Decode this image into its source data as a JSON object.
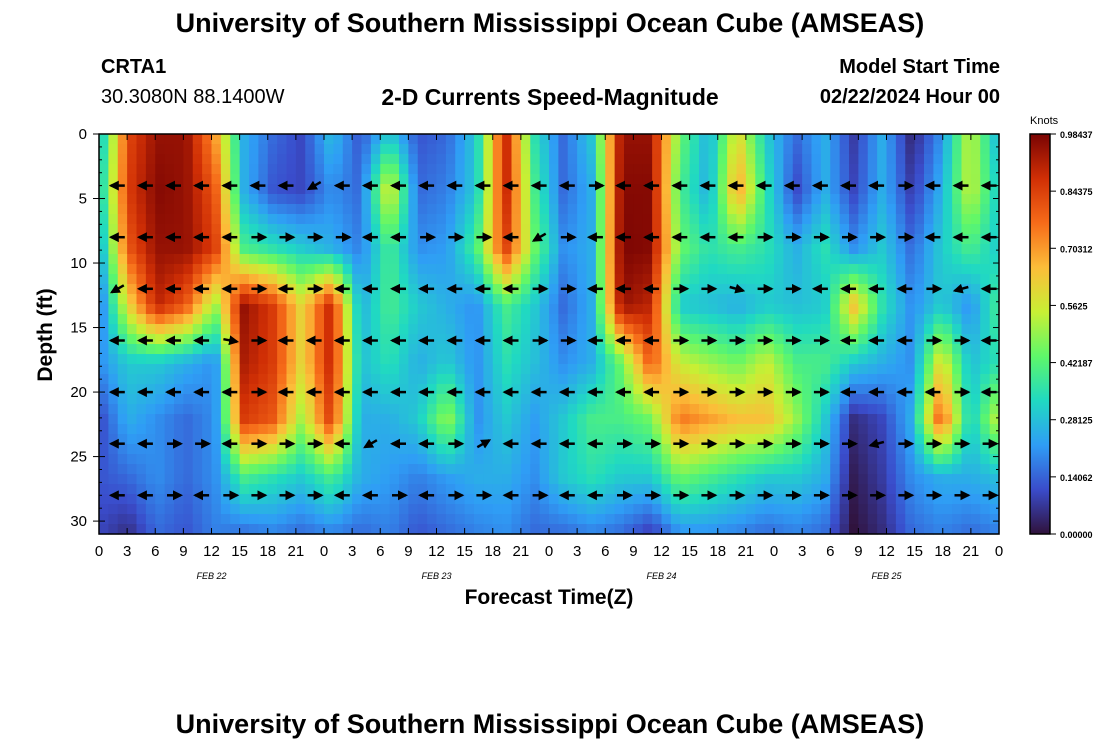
{
  "header": {
    "title": "University of Southern Mississippi Ocean Cube (AMSEAS)",
    "station": "CRTA1",
    "location": "30.3080N  88.1400W",
    "subtitle": "2-D Currents Speed-Magnitude",
    "model_start_label": "Model Start Time",
    "model_start_value": "02/22/2024 Hour 00"
  },
  "footer": {
    "title": "University of Southern Mississippi Ocean Cube (AMSEAS)"
  },
  "chart_data": {
    "type": "heatmap",
    "title": "2-D Currents Speed-Magnitude",
    "xlabel": "Forecast Time(Z)",
    "ylabel": "Depth (ft)",
    "xlim": [
      0,
      96
    ],
    "ylim": [
      31,
      0
    ],
    "x_ticks": [
      "0",
      "3",
      "6",
      "9",
      "12",
      "15",
      "18",
      "21",
      "0",
      "3",
      "6",
      "9",
      "12",
      "15",
      "18",
      "21",
      "0",
      "3",
      "6",
      "9",
      "12",
      "15",
      "18",
      "21",
      "0",
      "3",
      "6",
      "9",
      "12",
      "15",
      "18",
      "21",
      "0"
    ],
    "y_ticks": [
      "0",
      "5",
      "10",
      "15",
      "20",
      "25",
      "30"
    ],
    "date_labels": [
      {
        "text": "FEB 22",
        "hour": 12
      },
      {
        "text": "FEB 23",
        "hour": 36
      },
      {
        "text": "FEB 24",
        "hour": 60
      },
      {
        "text": "FEB 25",
        "hour": 84
      }
    ],
    "colorbar": {
      "unit": "Knots",
      "min": 0.0,
      "max": 0.98437,
      "ticks": [
        "0.98437",
        "0.84375",
        "0.70312",
        "0.5625",
        "0.42187",
        "0.28125",
        "0.14062",
        "0.00000"
      ],
      "colors": [
        "#30123b",
        "#3a4ccb",
        "#2f9df5",
        "#20d9c2",
        "#5ef76a",
        "#c8ef34",
        "#fcbd39",
        "#f66b19",
        "#d02f05",
        "#7a0403"
      ]
    },
    "arrow_depths_ft": [
      4,
      8,
      12,
      16,
      20,
      24,
      28
    ],
    "arrow_times_hr": [
      2,
      5,
      8,
      11,
      14,
      17,
      20,
      23,
      26,
      29,
      32,
      35,
      38,
      41,
      44,
      47,
      50,
      53,
      56,
      59,
      62,
      65,
      68,
      71,
      74,
      77,
      80,
      83,
      86,
      89,
      92,
      95
    ],
    "speed_knots": [
      [
        0.25,
        0.83,
        0.95,
        0.95,
        0.7,
        0.25,
        0.15,
        0.1,
        0.28,
        0.12,
        0.3,
        0.12,
        0.15,
        0.3,
        0.9,
        0.35,
        0.15,
        0.3,
        0.95,
        0.95,
        0.45,
        0.25,
        0.6,
        0.3,
        0.15,
        0.25,
        0.08,
        0.25,
        0.04,
        0.2,
        0.55,
        0.25
      ],
      [
        0.28,
        0.85,
        0.97,
        0.95,
        0.8,
        0.25,
        0.12,
        0.1,
        0.2,
        0.15,
        0.6,
        0.15,
        0.18,
        0.3,
        0.9,
        0.4,
        0.15,
        0.25,
        0.97,
        0.97,
        0.4,
        0.25,
        0.7,
        0.35,
        0.1,
        0.25,
        0.1,
        0.25,
        0.08,
        0.25,
        0.55,
        0.3
      ],
      [
        0.22,
        0.8,
        0.95,
        0.95,
        0.85,
        0.4,
        0.35,
        0.3,
        0.25,
        0.18,
        0.4,
        0.2,
        0.22,
        0.4,
        0.85,
        0.45,
        0.2,
        0.25,
        0.98,
        0.97,
        0.45,
        0.35,
        0.4,
        0.35,
        0.25,
        0.35,
        0.2,
        0.3,
        0.15,
        0.3,
        0.4,
        0.3
      ],
      [
        0.15,
        0.6,
        0.9,
        0.8,
        0.5,
        0.95,
        0.85,
        0.6,
        0.9,
        0.25,
        0.4,
        0.3,
        0.25,
        0.2,
        0.4,
        0.3,
        0.15,
        0.25,
        0.95,
        0.9,
        0.3,
        0.28,
        0.25,
        0.3,
        0.28,
        0.3,
        0.65,
        0.35,
        0.2,
        0.3,
        0.2,
        0.4
      ],
      [
        0.2,
        0.3,
        0.3,
        0.25,
        0.2,
        0.92,
        0.85,
        0.6,
        0.9,
        0.28,
        0.35,
        0.25,
        0.3,
        0.2,
        0.35,
        0.28,
        0.2,
        0.25,
        0.45,
        0.8,
        0.55,
        0.5,
        0.45,
        0.55,
        0.4,
        0.4,
        0.3,
        0.25,
        0.2,
        0.6,
        0.28,
        0.35
      ],
      [
        0.1,
        0.25,
        0.2,
        0.15,
        0.2,
        0.85,
        0.8,
        0.5,
        0.85,
        0.25,
        0.25,
        0.3,
        0.5,
        0.2,
        0.3,
        0.22,
        0.3,
        0.4,
        0.4,
        0.45,
        0.75,
        0.7,
        0.65,
        0.65,
        0.5,
        0.3,
        0.05,
        0.1,
        0.25,
        0.8,
        0.3,
        0.55
      ],
      [
        0.12,
        0.15,
        0.2,
        0.15,
        0.2,
        0.4,
        0.35,
        0.3,
        0.4,
        0.25,
        0.22,
        0.18,
        0.22,
        0.25,
        0.25,
        0.2,
        0.3,
        0.35,
        0.3,
        0.3,
        0.45,
        0.4,
        0.35,
        0.3,
        0.3,
        0.25,
        0.02,
        0.08,
        0.2,
        0.25,
        0.25,
        0.28
      ],
      [
        0.1,
        0.05,
        0.15,
        0.12,
        0.18,
        0.15,
        0.18,
        0.15,
        0.18,
        0.15,
        0.18,
        0.12,
        0.15,
        0.18,
        0.2,
        0.15,
        0.15,
        0.18,
        0.15,
        0.08,
        0.2,
        0.2,
        0.18,
        0.15,
        0.18,
        0.15,
        0.0,
        0.05,
        0.15,
        0.18,
        0.15,
        0.18
      ]
    ],
    "direction_deg": [
      [
        180,
        180,
        180,
        180,
        180,
        180,
        180,
        150,
        180,
        180,
        180,
        180,
        180,
        180,
        180,
        180,
        180,
        0,
        180,
        180,
        180,
        180,
        180,
        180,
        180,
        180,
        180,
        180,
        0,
        180,
        180,
        180
      ],
      [
        180,
        180,
        180,
        180,
        180,
        0,
        0,
        0,
        0,
        180,
        180,
        0,
        0,
        0,
        180,
        150,
        0,
        180,
        180,
        180,
        180,
        180,
        180,
        0,
        0,
        0,
        0,
        0,
        0,
        180,
        180,
        180
      ],
      [
        150,
        180,
        180,
        180,
        180,
        0,
        180,
        0,
        180,
        180,
        180,
        180,
        180,
        180,
        180,
        0,
        0,
        180,
        180,
        180,
        0,
        0,
        15,
        0,
        0,
        180,
        180,
        180,
        180,
        0,
        165,
        180
      ],
      [
        180,
        180,
        180,
        180,
        10,
        0,
        180,
        180,
        180,
        180,
        180,
        180,
        180,
        180,
        180,
        0,
        0,
        180,
        180,
        180,
        0,
        0,
        0,
        0,
        0,
        0,
        180,
        180,
        180,
        0,
        0,
        180
      ],
      [
        180,
        180,
        180,
        180,
        180,
        0,
        180,
        180,
        180,
        180,
        180,
        180,
        180,
        180,
        180,
        180,
        180,
        180,
        180,
        180,
        0,
        0,
        0,
        0,
        0,
        0,
        180,
        180,
        180,
        180,
        0,
        180
      ],
      [
        180,
        180,
        0,
        0,
        180,
        0,
        0,
        0,
        180,
        150,
        180,
        180,
        0,
        330,
        180,
        180,
        180,
        180,
        0,
        0,
        0,
        0,
        0,
        0,
        0,
        0,
        0,
        165,
        0,
        0,
        0,
        0
      ],
      [
        180,
        180,
        0,
        180,
        0,
        0,
        0,
        0,
        180,
        180,
        0,
        180,
        0,
        0,
        180,
        0,
        180,
        180,
        0,
        0,
        0,
        0,
        0,
        0,
        0,
        0,
        0,
        0,
        0,
        0,
        0,
        0
      ]
    ]
  }
}
